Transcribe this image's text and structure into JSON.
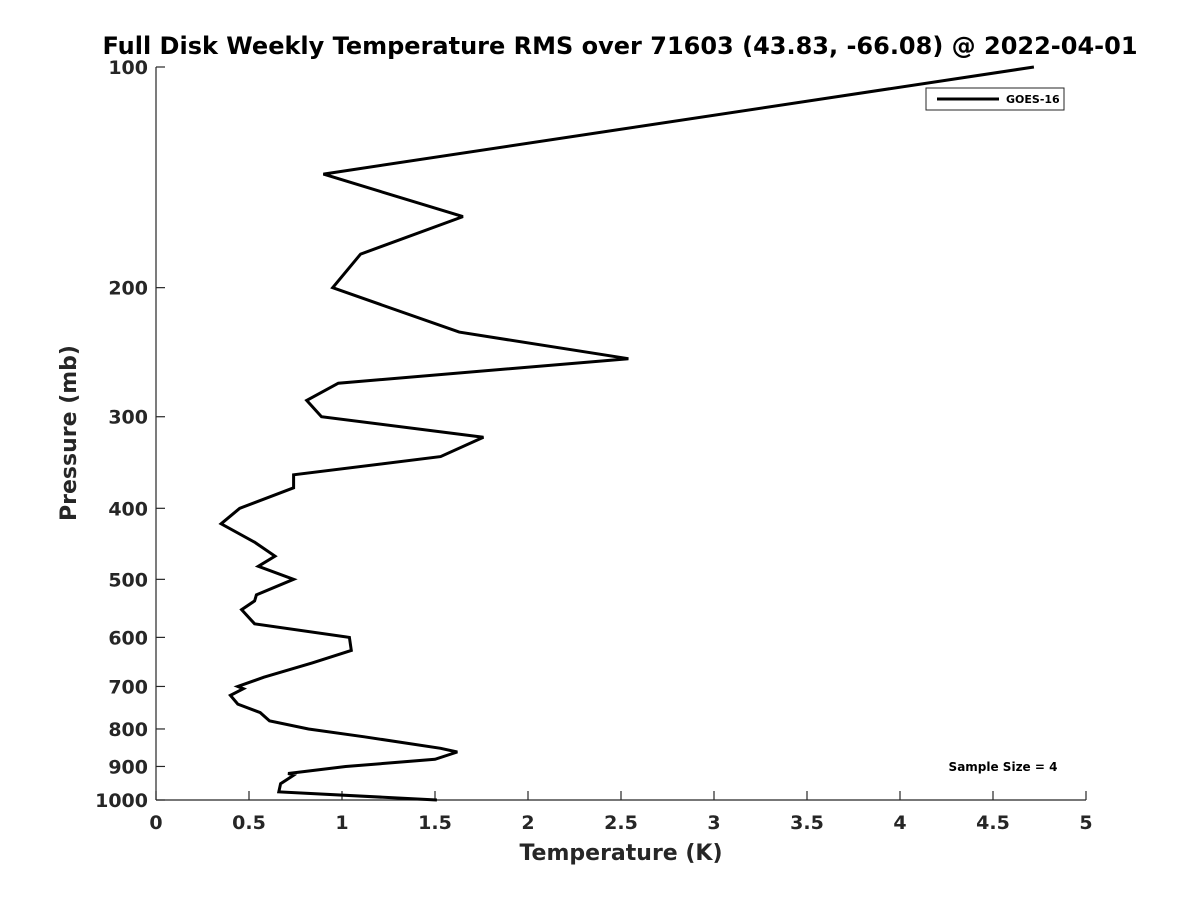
{
  "chart_data": {
    "type": "line",
    "title": "Full Disk Weekly Temperature RMS over 71603 (43.83, -66.08) @ 2022-04-01",
    "xlabel": "Temperature (K)",
    "ylabel": "Pressure (mb)",
    "xlim": [
      0,
      5
    ],
    "ylim": [
      100,
      1000
    ],
    "yscale": "log",
    "yreversed": true,
    "xticks": [
      0,
      0.5,
      1,
      1.5,
      2,
      2.5,
      3,
      3.5,
      4,
      4.5,
      5
    ],
    "xtick_labels": [
      "0",
      "0.5",
      "1",
      "1.5",
      "2",
      "2.5",
      "3",
      "3.5",
      "4",
      "4.5",
      "5"
    ],
    "yticks": [
      100,
      200,
      300,
      400,
      500,
      600,
      700,
      800,
      900,
      1000
    ],
    "ytick_labels": [
      "100",
      "200",
      "300",
      "400",
      "500",
      "600",
      "700",
      "800",
      "900",
      "1000"
    ],
    "grid": false,
    "legend_position": "top-right",
    "annotation": "Sample Size = 4",
    "series": [
      {
        "name": "GOES-16",
        "color": "#000000",
        "x": [
          4.72,
          0.9,
          1.65,
          1.1,
          0.95,
          1.63,
          2.54,
          0.98,
          0.81,
          0.89,
          1.76,
          1.53,
          0.74,
          0.74,
          0.45,
          0.35,
          0.53,
          0.64,
          0.55,
          0.74,
          0.54,
          0.53,
          0.46,
          0.53,
          1.04,
          1.05,
          0.84,
          0.58,
          0.44,
          0.47,
          0.4,
          0.44,
          0.56,
          0.61,
          0.82,
          1.12,
          1.53,
          1.62,
          1.5,
          1.02,
          0.71,
          0.74,
          0.67,
          0.66,
          1.51
        ],
        "y": [
          100,
          140,
          160,
          180,
          200,
          230,
          250,
          270,
          285,
          300,
          320,
          340,
          360,
          375,
          400,
          420,
          445,
          465,
          480,
          500,
          525,
          535,
          550,
          575,
          600,
          625,
          650,
          680,
          700,
          705,
          720,
          740,
          760,
          780,
          800,
          820,
          850,
          860,
          880,
          900,
          920,
          925,
          950,
          975,
          1000
        ]
      }
    ]
  }
}
